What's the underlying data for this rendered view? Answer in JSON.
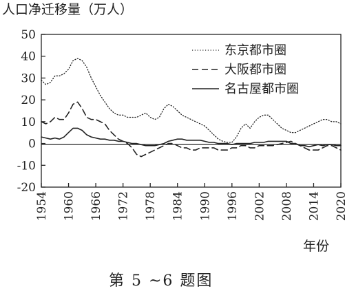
{
  "chart_data": {
    "type": "line",
    "ylabel": "人口净迁移量（万人）",
    "xlabel": "年份",
    "caption": "第 5 ~6 题图",
    "xlim": [
      1954,
      2020
    ],
    "ylim": [
      -20,
      50
    ],
    "xticks": [
      "1954",
      "1960",
      "1966",
      "1972",
      "1978",
      "1984",
      "1990",
      "1996",
      "2002",
      "2008",
      "2014",
      "2020"
    ],
    "yticks": [
      "50",
      "40",
      "30",
      "20",
      "10",
      "0",
      "-10",
      "-20"
    ],
    "legend_position": "top-right",
    "grid": false,
    "zero_line": true,
    "series": [
      {
        "name": "东京都市圈",
        "style": "dotted",
        "points": [
          [
            1954,
            29
          ],
          [
            1955,
            27
          ],
          [
            1956,
            28
          ],
          [
            1957,
            31
          ],
          [
            1958,
            31
          ],
          [
            1959,
            32
          ],
          [
            1960,
            34
          ],
          [
            1961,
            38
          ],
          [
            1962,
            39
          ],
          [
            1963,
            38
          ],
          [
            1964,
            35
          ],
          [
            1965,
            30
          ],
          [
            1966,
            26
          ],
          [
            1967,
            22
          ],
          [
            1968,
            19
          ],
          [
            1969,
            16
          ],
          [
            1970,
            14
          ],
          [
            1971,
            13
          ],
          [
            1972,
            13
          ],
          [
            1973,
            12
          ],
          [
            1974,
            12
          ],
          [
            1975,
            12
          ],
          [
            1976,
            13
          ],
          [
            1977,
            14
          ],
          [
            1978,
            12
          ],
          [
            1979,
            11
          ],
          [
            1980,
            12
          ],
          [
            1981,
            16
          ],
          [
            1982,
            18
          ],
          [
            1983,
            17
          ],
          [
            1984,
            15
          ],
          [
            1985,
            13
          ],
          [
            1986,
            12
          ],
          [
            1987,
            11
          ],
          [
            1988,
            10
          ],
          [
            1989,
            9
          ],
          [
            1990,
            8
          ],
          [
            1991,
            6
          ],
          [
            1992,
            4
          ],
          [
            1993,
            2
          ],
          [
            1994,
            1
          ],
          [
            1995,
            0.5
          ],
          [
            1996,
            0.5
          ],
          [
            1997,
            3
          ],
          [
            1998,
            7
          ],
          [
            1999,
            9
          ],
          [
            2000,
            7
          ],
          [
            2001,
            10
          ],
          [
            2002,
            12
          ],
          [
            2003,
            13
          ],
          [
            2004,
            13
          ],
          [
            2005,
            11
          ],
          [
            2006,
            9
          ],
          [
            2007,
            7
          ],
          [
            2008,
            6
          ],
          [
            2009,
            5
          ],
          [
            2010,
            5
          ],
          [
            2011,
            6
          ],
          [
            2012,
            7
          ],
          [
            2013,
            8
          ],
          [
            2014,
            9
          ],
          [
            2015,
            10
          ],
          [
            2016,
            11
          ],
          [
            2017,
            11
          ],
          [
            2018,
            10
          ],
          [
            2019,
            10
          ],
          [
            2020,
            9
          ]
        ]
      },
      {
        "name": "大阪都市圈",
        "style": "dashed",
        "points": [
          [
            1954,
            10
          ],
          [
            1955,
            9
          ],
          [
            1956,
            10
          ],
          [
            1957,
            12
          ],
          [
            1958,
            11
          ],
          [
            1959,
            11
          ],
          [
            1960,
            14
          ],
          [
            1961,
            18
          ],
          [
            1962,
            19
          ],
          [
            1963,
            16
          ],
          [
            1964,
            12
          ],
          [
            1965,
            11
          ],
          [
            1966,
            11
          ],
          [
            1967,
            10
          ],
          [
            1968,
            9
          ],
          [
            1969,
            6
          ],
          [
            1970,
            4
          ],
          [
            1971,
            2
          ],
          [
            1972,
            1
          ],
          [
            1973,
            0
          ],
          [
            1974,
            -2
          ],
          [
            1975,
            -5
          ],
          [
            1976,
            -6
          ],
          [
            1977,
            -5
          ],
          [
            1978,
            -4
          ],
          [
            1979,
            -3
          ],
          [
            1980,
            -2
          ],
          [
            1981,
            -1
          ],
          [
            1982,
            0
          ],
          [
            1983,
            0
          ],
          [
            1984,
            -1
          ],
          [
            1985,
            -2
          ],
          [
            1986,
            -2
          ],
          [
            1987,
            -3
          ],
          [
            1988,
            -3
          ],
          [
            1989,
            -2
          ],
          [
            1990,
            -2
          ],
          [
            1991,
            -2
          ],
          [
            1992,
            -2
          ],
          [
            1993,
            -3
          ],
          [
            1994,
            -3
          ],
          [
            1995,
            -3
          ],
          [
            1996,
            -2
          ],
          [
            1997,
            -2
          ],
          [
            1998,
            -1
          ],
          [
            1999,
            -1
          ],
          [
            2000,
            -2
          ],
          [
            2001,
            -2
          ],
          [
            2002,
            -1
          ],
          [
            2003,
            -1
          ],
          [
            2004,
            -1
          ],
          [
            2005,
            -1
          ],
          [
            2006,
            -0.5
          ],
          [
            2007,
            0
          ],
          [
            2008,
            0.5
          ],
          [
            2009,
            1
          ],
          [
            2010,
            0
          ],
          [
            2011,
            -1
          ],
          [
            2012,
            -2
          ],
          [
            2013,
            -3
          ],
          [
            2014,
            -3
          ],
          [
            2015,
            -3
          ],
          [
            2016,
            -2
          ],
          [
            2017,
            -1
          ],
          [
            2018,
            -1
          ],
          [
            2019,
            -2
          ],
          [
            2020,
            -3
          ]
        ]
      },
      {
        "name": "名古屋都市圈",
        "style": "solid",
        "points": [
          [
            1954,
            3
          ],
          [
            1955,
            2.5
          ],
          [
            1956,
            2
          ],
          [
            1957,
            2.5
          ],
          [
            1958,
            2
          ],
          [
            1959,
            3
          ],
          [
            1960,
            5
          ],
          [
            1961,
            7
          ],
          [
            1962,
            7
          ],
          [
            1963,
            6
          ],
          [
            1964,
            4
          ],
          [
            1965,
            3
          ],
          [
            1966,
            2.5
          ],
          [
            1967,
            2
          ],
          [
            1968,
            2
          ],
          [
            1969,
            1.5
          ],
          [
            1970,
            1.5
          ],
          [
            1971,
            1
          ],
          [
            1972,
            1
          ],
          [
            1973,
            0.5
          ],
          [
            1974,
            0
          ],
          [
            1975,
            0
          ],
          [
            1976,
            -0.5
          ],
          [
            1977,
            -1
          ],
          [
            1978,
            -1
          ],
          [
            1979,
            -1
          ],
          [
            1980,
            -0.5
          ],
          [
            1981,
            0
          ],
          [
            1982,
            1
          ],
          [
            1983,
            1.5
          ],
          [
            1984,
            2
          ],
          [
            1985,
            2
          ],
          [
            1986,
            1.5
          ],
          [
            1987,
            1.5
          ],
          [
            1988,
            1.5
          ],
          [
            1989,
            1.5
          ],
          [
            1990,
            1
          ],
          [
            1991,
            0.5
          ],
          [
            1992,
            0.5
          ],
          [
            1993,
            0
          ],
          [
            1994,
            0
          ],
          [
            1995,
            0
          ],
          [
            1996,
            -0.5
          ],
          [
            1997,
            0
          ],
          [
            1998,
            0
          ],
          [
            1999,
            0
          ],
          [
            2000,
            0
          ],
          [
            2001,
            0.5
          ],
          [
            2002,
            0.5
          ],
          [
            2003,
            0.5
          ],
          [
            2004,
            1
          ],
          [
            2005,
            1
          ],
          [
            2006,
            1
          ],
          [
            2007,
            1
          ],
          [
            2008,
            1
          ],
          [
            2009,
            0
          ],
          [
            2010,
            0
          ],
          [
            2011,
            -1
          ],
          [
            2012,
            -1
          ],
          [
            2013,
            -1.5
          ],
          [
            2014,
            -1
          ],
          [
            2015,
            -0.5
          ],
          [
            2016,
            -1
          ],
          [
            2017,
            -0.5
          ],
          [
            2018,
            -0.5
          ],
          [
            2019,
            -1
          ],
          [
            2020,
            -1
          ]
        ]
      }
    ]
  }
}
